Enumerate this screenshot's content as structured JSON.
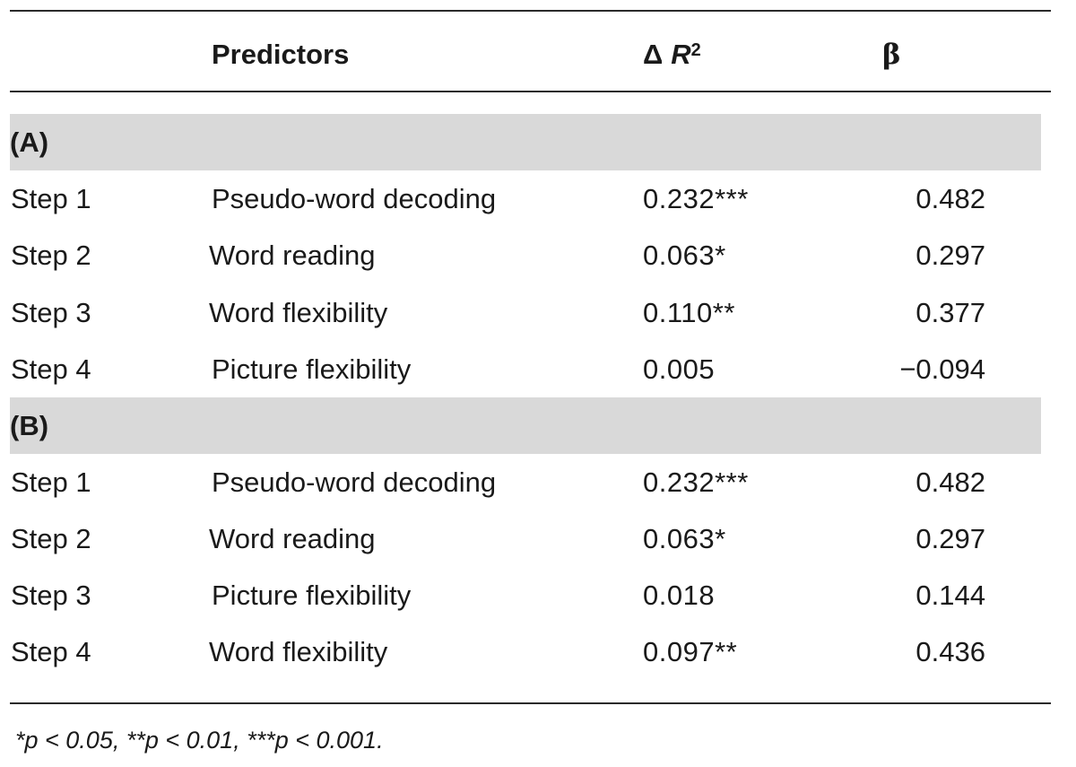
{
  "header": {
    "predictors": "Predictors",
    "delta_symbol": "Δ",
    "r_letter": "R",
    "r_sup": "2",
    "beta": "β"
  },
  "sections": [
    {
      "label": "(A)",
      "rows": [
        {
          "step": "Step 1",
          "predictor": "Pseudo-word decoding",
          "delta_r2": "0.232***",
          "beta": "0.482"
        },
        {
          "step": "Step 2",
          "predictor": "Word reading",
          "delta_r2": "0.063*",
          "beta": "0.297"
        },
        {
          "step": "Step 3",
          "predictor": "Word flexibility",
          "delta_r2": "0.110**",
          "beta": "0.377"
        },
        {
          "step": "Step 4",
          "predictor": "Picture flexibility",
          "delta_r2": "0.005",
          "beta": "−0.094"
        }
      ]
    },
    {
      "label": "(B)",
      "rows": [
        {
          "step": "Step 1",
          "predictor": "Pseudo-word decoding",
          "delta_r2": "0.232***",
          "beta": "0.482"
        },
        {
          "step": "Step 2",
          "predictor": "Word reading",
          "delta_r2": "0.063*",
          "beta": "0.297"
        },
        {
          "step": "Step 3",
          "predictor": "Picture flexibility",
          "delta_r2": "0.018",
          "beta": "0.144"
        },
        {
          "step": "Step 4",
          "predictor": "Word flexibility",
          "delta_r2": "0.097**",
          "beta": "0.436"
        }
      ]
    }
  ],
  "footnote": "*p < 0.05, **p < 0.01, ***p < 0.001."
}
